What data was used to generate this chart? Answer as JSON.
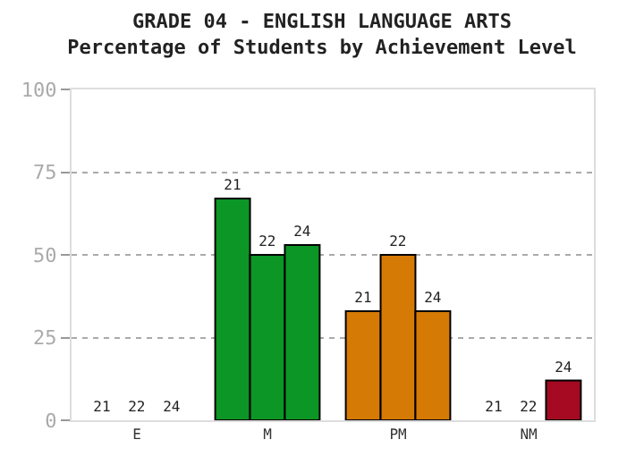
{
  "chart_data": {
    "type": "bar",
    "title": "GRADE 04 - ENGLISH LANGUAGE ARTS\nPercentage of Students by Achievement Level",
    "categories": [
      "E",
      "M",
      "PM",
      "NM"
    ],
    "series": [
      {
        "name": "21",
        "colors": [
          "#0b9626",
          "#0b9626",
          "#d67a06",
          "#a50a22"
        ],
        "values": [
          0,
          67,
          33,
          0
        ]
      },
      {
        "name": "22",
        "colors": [
          "#0b9626",
          "#0b9626",
          "#d67a06",
          "#a50a22"
        ],
        "values": [
          0,
          50,
          50,
          0
        ]
      },
      {
        "name": "24",
        "colors": [
          "#0b9626",
          "#0b9626",
          "#d67a06",
          "#a50a22"
        ],
        "values": [
          0,
          53,
          33,
          12
        ]
      }
    ],
    "ylim": [
      0,
      100
    ],
    "yticks": [
      0,
      25,
      50,
      75,
      100
    ],
    "grid": "y",
    "legend": false
  }
}
